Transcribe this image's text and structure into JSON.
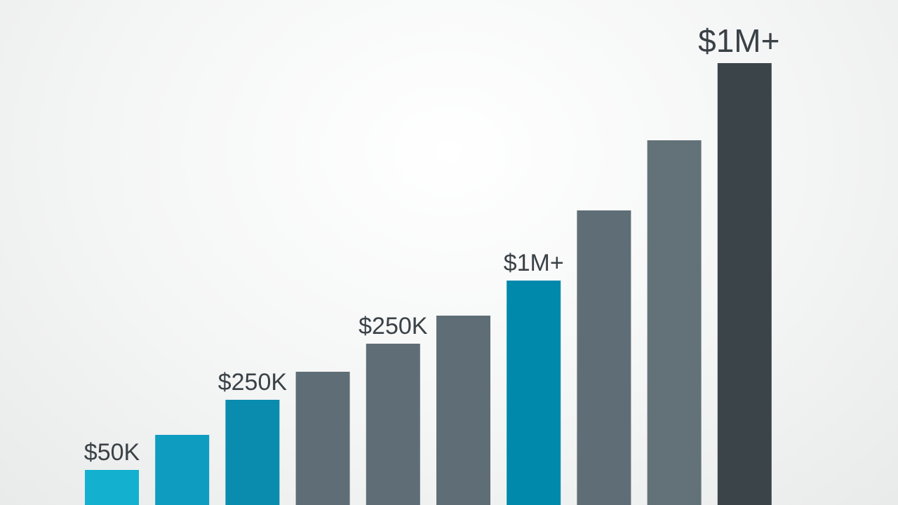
{
  "chart_data": {
    "type": "bar",
    "values": [
      50,
      100,
      150,
      190,
      230,
      270,
      320,
      420,
      520,
      630
    ],
    "data_labels": [
      "$50K",
      "",
      "$250K",
      "",
      "$250K",
      "",
      "$1M+",
      "",
      "",
      "$1M+"
    ],
    "ylim": [
      0,
      680
    ],
    "grid": false,
    "legend": "none",
    "colors": [
      "#13b0d0",
      "#0e9cc0",
      "#0a8cae",
      "#5f6e76",
      "#5f6e76",
      "#5f6e76",
      "#0089ab",
      "#5f6e76",
      "#637279",
      "#3b4449"
    ]
  }
}
